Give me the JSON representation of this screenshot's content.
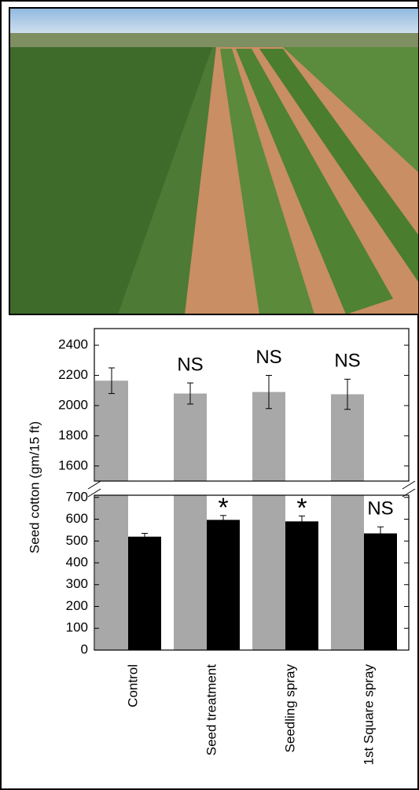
{
  "chart_data": {
    "type": "bar",
    "ylabel": "Seed cotton (gm/15 ft)",
    "categories": [
      "Control",
      "Seed treatment",
      "Seedling spray",
      "1st Square spray"
    ],
    "upper_axis": {
      "ylim": [
        1500,
        2510
      ],
      "yticks": [
        1600,
        1800,
        2000,
        2200,
        2400
      ]
    },
    "lower_axis": {
      "ylim": [
        0,
        710
      ],
      "yticks": [
        0,
        100,
        200,
        300,
        400,
        500,
        600,
        700
      ]
    },
    "series": [
      {
        "color": "#a8a8a8",
        "panel": "upper",
        "values": [
          2165,
          2080,
          2090,
          2075
        ],
        "errors": [
          85,
          70,
          110,
          100
        ],
        "annotations": [
          null,
          "NS",
          "NS",
          "NS"
        ]
      },
      {
        "color": "#000000",
        "panel": "lower",
        "values": [
          520,
          597,
          590,
          535
        ],
        "errors": [
          15,
          20,
          25,
          30
        ],
        "annotations": [
          null,
          "*",
          "*",
          "NS"
        ]
      }
    ]
  }
}
